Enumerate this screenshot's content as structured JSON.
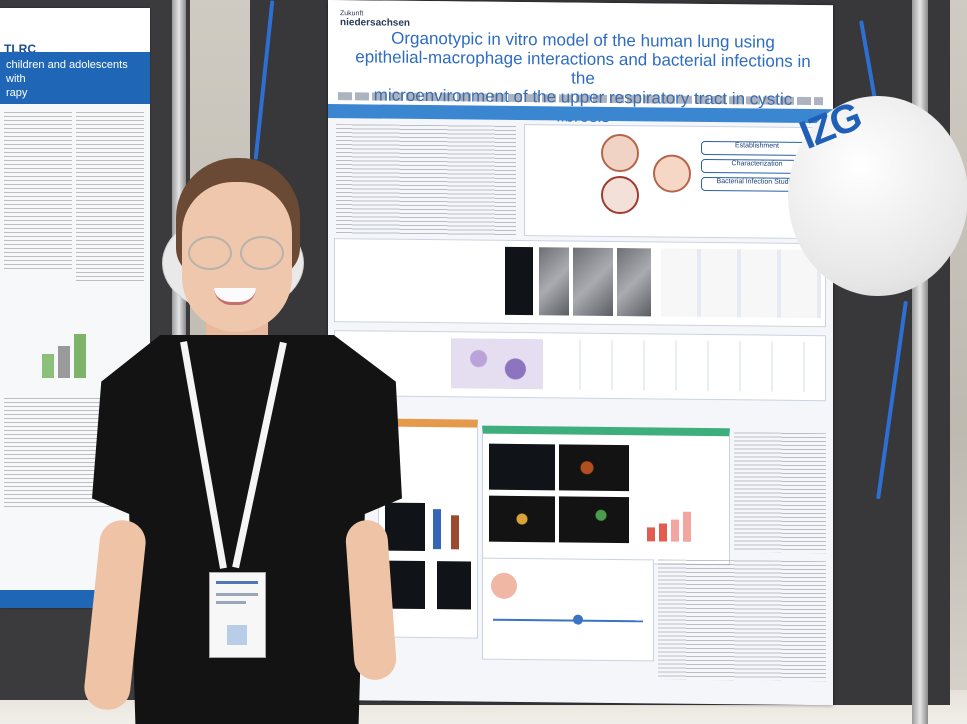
{
  "scene": {
    "description_free": true
  },
  "left_poster": {
    "logo_text": "TLRC",
    "title_line1": "children and adolescents with",
    "title_line2": "rapy"
  },
  "main_poster": {
    "logo_prefix": "Zukunft",
    "logo_name": "niedersachsen",
    "title_line1": "Organotypic in vitro model of the human lung using",
    "title_line2": "epithelial-macrophage interactions and bacterial infections in the",
    "title_line3": "microenvironment of the upper respiratory tract in cystic fibrosis",
    "box_labels": [
      "Establishment",
      "Characterization",
      "Bacterial Infection Studies"
    ]
  },
  "balloon": {
    "text": "IZG"
  },
  "colors": {
    "board": "#38383b",
    "poster_blue": "#2d6cc0",
    "balloon_logo": "#1f5fb8",
    "ribbon": "#2e6fd3"
  }
}
